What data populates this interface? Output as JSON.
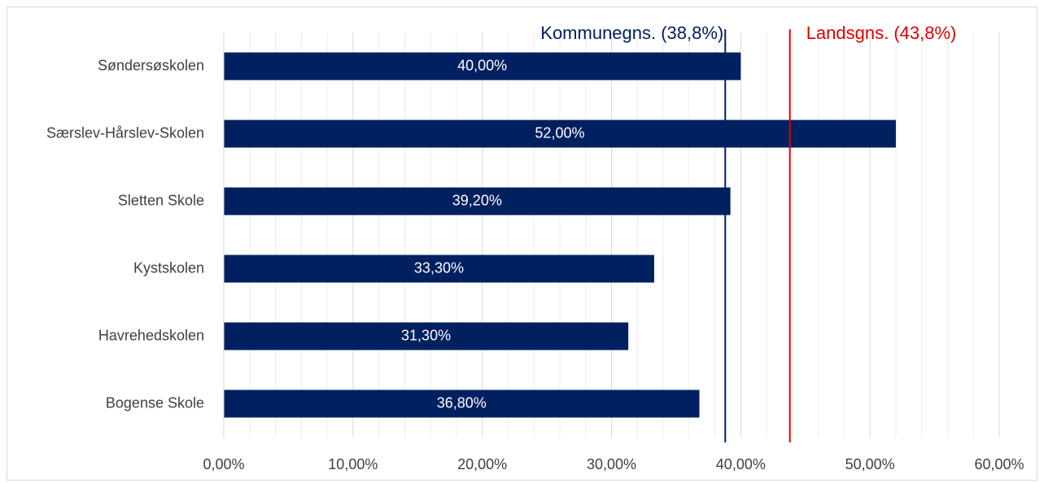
{
  "chart_data": {
    "type": "hbar",
    "categories": [
      "Søndersøskolen",
      "Særslev-Hårslev-Skolen",
      "Sletten Skole",
      "Kystskolen",
      "Havrehedskolen",
      "Bogense Skole"
    ],
    "values": [
      40,
      52,
      39.2,
      33.3,
      31.3,
      36.8
    ],
    "value_labels": [
      "40,00%",
      "52,00%",
      "39,20%",
      "33,30%",
      "31,30%",
      "36,80%"
    ],
    "color": "#002060",
    "xlim": [
      0,
      60
    ],
    "xticks": [
      {
        "value": 0,
        "label": "0,00%"
      },
      {
        "value": 10,
        "label": "10,00%"
      },
      {
        "value": 20,
        "label": "20,00%"
      },
      {
        "value": 30,
        "label": "30,00%"
      },
      {
        "value": 40,
        "label": "40,00%"
      },
      {
        "value": 50,
        "label": "50,00%"
      },
      {
        "value": 60,
        "label": "60,00%"
      }
    ],
    "xminor": [
      2,
      4,
      6,
      8,
      12,
      14,
      16,
      18,
      22,
      24,
      26,
      28,
      32,
      34,
      36,
      38,
      42,
      44,
      46,
      48,
      52,
      54,
      56,
      58
    ],
    "grid": true,
    "reference_lines": [
      {
        "label": "Kommunegns. (38,8%)",
        "value": 38.8,
        "color": "#002060"
      },
      {
        "label": "Landsgns. (43,8%)",
        "value": 43.8,
        "color": "#e00000"
      }
    ]
  }
}
